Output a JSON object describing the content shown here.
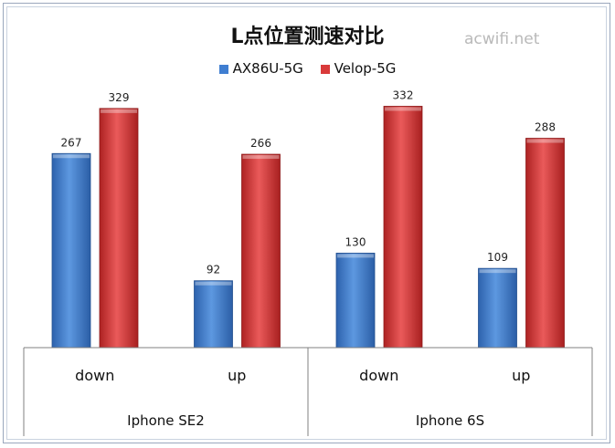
{
  "chart_data": {
    "type": "bar",
    "title": "L点位置测速对比",
    "watermark": "acwifi.net",
    "groups": [
      "Iphone SE2",
      "Iphone 6S"
    ],
    "categories": [
      "down",
      "up",
      "down",
      "up"
    ],
    "series": [
      {
        "name": "AX86U-5G",
        "color": "#3f7ed1",
        "values": [
          267,
          92,
          130,
          109
        ]
      },
      {
        "name": "Velop-5G",
        "color": "#d93a3a",
        "values": [
          329,
          266,
          332,
          288
        ]
      }
    ],
    "ylim": [
      0,
      350
    ],
    "grid": false,
    "legend_position": "top"
  }
}
